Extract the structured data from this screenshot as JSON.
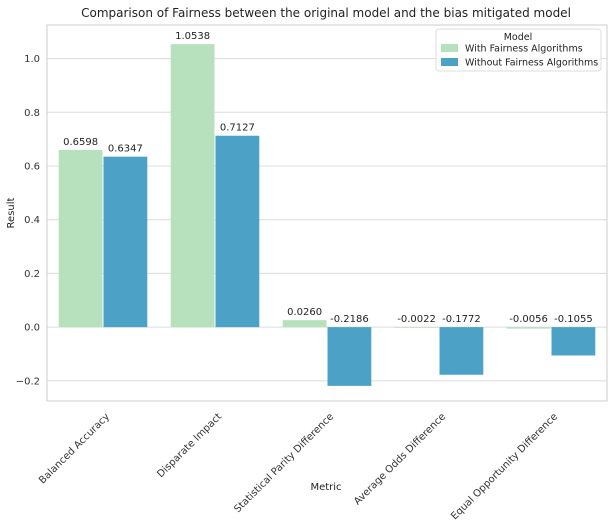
{
  "chart_data": {
    "type": "bar",
    "title": "Comparison of Fairness between the original model and the bias mitigated model",
    "xlabel": "Metric",
    "ylabel": "Result",
    "categories": [
      "Balanced Accuracy",
      "Disparate Impact",
      "Statistical Parity Difference",
      "Average Odds Difference",
      "Equal Opportunity Difference"
    ],
    "series": [
      {
        "name": "With Fairness Algorithms",
        "values": [
          0.6598,
          1.0538,
          0.026,
          -0.0022,
          -0.0056
        ],
        "labels": [
          "0.6598",
          "1.0538",
          "0.0260",
          "-0.0022",
          "-0.0056"
        ],
        "color": "#b7e1bd"
      },
      {
        "name": "Without Fairness Algorithms",
        "values": [
          0.6347,
          0.7127,
          -0.2186,
          -0.1772,
          -0.1055
        ],
        "labels": [
          "0.6347",
          "0.7127",
          "-0.2186",
          "-0.1772",
          "-0.1055"
        ],
        "color": "#4ba1c6"
      }
    ],
    "yticks": [
      -0.2,
      0.0,
      0.2,
      0.4,
      0.6,
      0.8,
      1.0
    ],
    "ytick_labels": [
      "−0.2",
      "0.0",
      "0.2",
      "0.4",
      "0.6",
      "0.8",
      "1.0"
    ],
    "ylim": [
      -0.275,
      1.125
    ],
    "grid": true,
    "legend": {
      "title": "Model",
      "placement": "top-right"
    }
  }
}
